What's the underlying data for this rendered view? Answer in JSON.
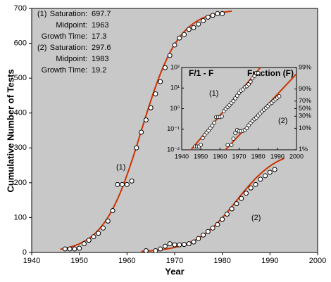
{
  "chart_data": [
    {
      "type": "logistic-scatter",
      "x_label": "Year",
      "y_label": "Cumulative Number of Tests",
      "xlim": [
        1940,
        2000
      ],
      "xticks": [
        1940,
        1950,
        1960,
        1970,
        1980,
        1990,
        2000
      ],
      "ylim": [
        0,
        700
      ],
      "yticks": [
        0,
        100,
        200,
        300,
        400,
        500,
        600,
        700
      ],
      "curve_color": "#cc3300",
      "legend_labels": {
        "saturation": "Saturation:",
        "midpoint": "Midpoint:",
        "growth_time": "Growth Time:"
      },
      "series": [
        {
          "name": "(1)",
          "saturation": 697.7,
          "midpoint": 1963,
          "growth_time": 17.3,
          "x": [
            1947,
            1948,
            1949,
            1950,
            1951,
            1952,
            1953,
            1954,
            1955,
            1956,
            1957,
            1958,
            1959,
            1960,
            1961,
            1962,
            1963,
            1964,
            1965,
            1966,
            1967,
            1968,
            1969,
            1970,
            1971,
            1972,
            1973,
            1974,
            1975,
            1976,
            1977,
            1978,
            1979,
            1980
          ],
          "values": [
            10,
            10,
            10,
            12,
            25,
            35,
            45,
            55,
            70,
            90,
            120,
            195,
            195,
            195,
            205,
            300,
            345,
            380,
            415,
            455,
            490,
            530,
            565,
            595,
            615,
            625,
            640,
            645,
            655,
            665,
            675,
            680,
            685,
            685
          ]
        },
        {
          "name": "(2)",
          "saturation": 297.6,
          "midpoint": 1983,
          "growth_time": 19.2,
          "x": [
            1964,
            1966,
            1967,
            1968,
            1969,
            1970,
            1971,
            1972,
            1973,
            1974,
            1975,
            1976,
            1977,
            1978,
            1979,
            1980,
            1981,
            1982,
            1983,
            1984,
            1985,
            1986,
            1987,
            1988,
            1989,
            1990,
            1991
          ],
          "values": [
            5,
            5,
            10,
            18,
            25,
            22,
            22,
            23,
            25,
            30,
            40,
            50,
            60,
            70,
            80,
            95,
            110,
            125,
            140,
            155,
            170,
            185,
            195,
            210,
            220,
            230,
            238
          ]
        }
      ]
    },
    {
      "type": "fisher-pry",
      "y_label": "F/1 - F",
      "y2_label": "Fraction (F)",
      "log_y": true,
      "xlim": [
        1940,
        2000
      ],
      "xticks": [
        1940,
        1950,
        1960,
        1970,
        1980,
        1990,
        2000
      ],
      "ylim": [
        0.01,
        100
      ],
      "yticks": [
        {
          "value": 0.01,
          "label": "10⁻²"
        },
        {
          "value": 0.1,
          "label": "10⁻¹"
        },
        {
          "value": 1,
          "label": "10⁰"
        },
        {
          "value": 10,
          "label": "10¹"
        },
        {
          "value": 100,
          "label": "10²"
        }
      ],
      "y2ticks": [
        {
          "value": 1,
          "label": "1%"
        },
        {
          "value": 10,
          "label": "10%"
        },
        {
          "value": 30,
          "label": "30%"
        },
        {
          "value": 50,
          "label": "50%"
        },
        {
          "value": 70,
          "label": "70%"
        },
        {
          "value": 90,
          "label": "90%"
        },
        {
          "value": 99,
          "label": "99%"
        }
      ]
    }
  ]
}
